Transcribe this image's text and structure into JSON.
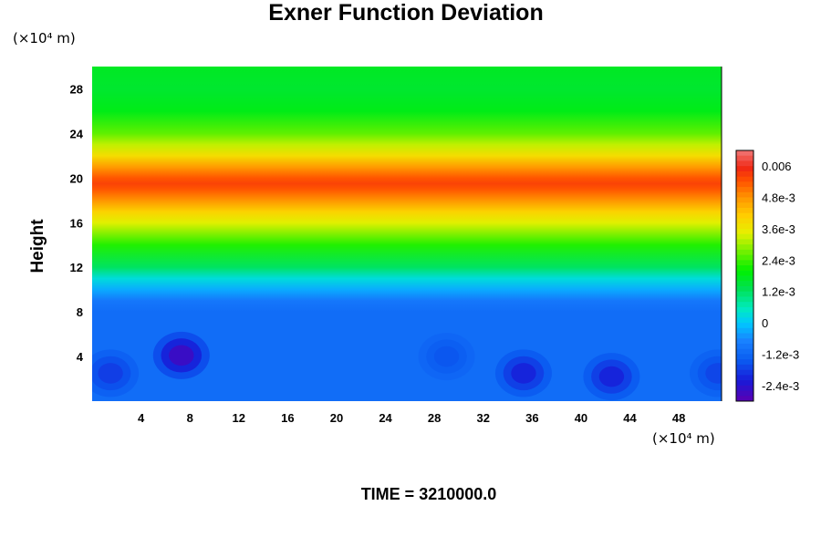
{
  "chart_data": {
    "type": "heatmap",
    "title": "Exner Function Deviation",
    "ylabel": "Height",
    "xlabel": "",
    "x_unit": "(×10⁴ m)",
    "y_unit": "(×10⁴ m)",
    "footer": "TIME = 3210000.0",
    "xlim": [
      0,
      51.5
    ],
    "ylim": [
      0,
      30
    ],
    "x_ticks": [
      4,
      8,
      12,
      16,
      20,
      24,
      28,
      32,
      36,
      40,
      44,
      48
    ],
    "y_ticks": [
      4,
      8,
      12,
      16,
      20,
      24,
      28
    ],
    "colorbar": {
      "vmin": -0.003,
      "vmax": 0.0066,
      "tick_values": [
        0.006,
        0.0048,
        0.0036,
        0.0024,
        0.0012,
        0,
        -0.0012,
        -0.0024
      ],
      "tick_labels": [
        "0.006",
        "4.8e-3",
        "3.6e-3",
        "2.4e-3",
        "1.2e-3",
        "0",
        "-1.2e-3",
        "-2.4e-3"
      ]
    },
    "vertical_profile": {
      "heights": [
        0,
        8,
        9,
        10,
        11,
        12,
        14,
        16,
        17,
        18,
        19,
        19.5,
        20,
        21,
        22,
        23,
        24,
        26,
        28,
        30
      ],
      "values": [
        -0.0011,
        -0.0011,
        -0.0009,
        -0.0003,
        0.0003,
        0.0012,
        0.0022,
        0.0034,
        0.004,
        0.0048,
        0.0054,
        0.0056,
        0.0054,
        0.0047,
        0.0038,
        0.0032,
        0.0026,
        0.0018,
        0.0016,
        0.0017
      ]
    },
    "anomalies": [
      {
        "x": 1.5,
        "y": 2.5,
        "value": -0.0018
      },
      {
        "x": 7.3,
        "y": 4.1,
        "value": -0.0026
      },
      {
        "x": 35.3,
        "y": 2.5,
        "value": -0.0021
      },
      {
        "x": 42.5,
        "y": 2.2,
        "value": -0.0021
      },
      {
        "x": 29,
        "y": 4,
        "value": -0.0015
      },
      {
        "x": 51.2,
        "y": 2.5,
        "value": -0.0017
      }
    ]
  }
}
